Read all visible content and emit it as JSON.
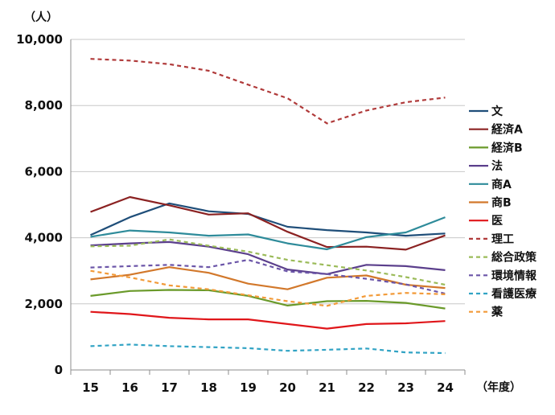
{
  "chart_data": {
    "type": "line",
    "y_unit_label": "（人）",
    "x_unit_label": "（年度）",
    "categories": [
      "15",
      "16",
      "17",
      "18",
      "19",
      "20",
      "21",
      "22",
      "23",
      "24"
    ],
    "ylim": [
      0,
      10000
    ],
    "y_ticks": [
      0,
      2000,
      4000,
      6000,
      8000,
      10000
    ],
    "y_tick_labels": [
      "0",
      "2,000",
      "4,000",
      "6,000",
      "8,000",
      "10,000"
    ],
    "grid": "horizontal",
    "legend_position": "right",
    "series": [
      {
        "name": "文",
        "color": "#1f4e79",
        "style": "solid",
        "values": [
          4080,
          4620,
          5040,
          4800,
          4720,
          4330,
          4230,
          4160,
          4060,
          4130
        ]
      },
      {
        "name": "経済A",
        "color": "#8b2222",
        "style": "solid",
        "values": [
          4780,
          5230,
          4980,
          4700,
          4740,
          4180,
          3720,
          3730,
          3640,
          4070
        ]
      },
      {
        "name": "経済B",
        "color": "#6a9a2a",
        "style": "solid",
        "values": [
          2240,
          2390,
          2420,
          2410,
          2240,
          1950,
          2080,
          2090,
          2030,
          1860
        ]
      },
      {
        "name": "法",
        "color": "#5b3f8c",
        "style": "solid",
        "values": [
          3770,
          3830,
          3870,
          3730,
          3500,
          3040,
          2900,
          3180,
          3140,
          3020
        ]
      },
      {
        "name": "商A",
        "color": "#2e8b9a",
        "style": "solid",
        "values": [
          4030,
          4220,
          4160,
          4060,
          4100,
          3830,
          3650,
          4020,
          4160,
          4620
        ]
      },
      {
        "name": "商B",
        "color": "#d2782b",
        "style": "solid",
        "values": [
          2740,
          2880,
          3110,
          2940,
          2610,
          2440,
          2790,
          2860,
          2580,
          2480
        ]
      },
      {
        "name": "医",
        "color": "#e0161a",
        "style": "solid",
        "values": [
          1760,
          1690,
          1580,
          1530,
          1530,
          1390,
          1250,
          1390,
          1410,
          1480
        ]
      },
      {
        "name": "理工",
        "color": "#b03a3a",
        "style": "dashed",
        "values": [
          9410,
          9360,
          9250,
          9050,
          8630,
          8220,
          7460,
          7850,
          8100,
          8240
        ]
      },
      {
        "name": "総合政策",
        "color": "#9bbb59",
        "style": "dashed",
        "values": [
          3740,
          3760,
          3950,
          3760,
          3580,
          3330,
          3170,
          3010,
          2810,
          2580
        ]
      },
      {
        "name": "環境情報",
        "color": "#6b55a8",
        "style": "dashed",
        "values": [
          3100,
          3140,
          3180,
          3110,
          3330,
          2980,
          2900,
          2760,
          2590,
          2310
        ]
      },
      {
        "name": "看護医療",
        "color": "#31a3c4",
        "style": "dashed",
        "values": [
          720,
          770,
          720,
          690,
          660,
          580,
          610,
          650,
          530,
          510
        ]
      },
      {
        "name": "薬",
        "color": "#f29a38",
        "style": "dashed",
        "values": [
          3000,
          2800,
          2560,
          2440,
          2260,
          2080,
          1940,
          2240,
          2330,
          2290
        ]
      }
    ]
  }
}
